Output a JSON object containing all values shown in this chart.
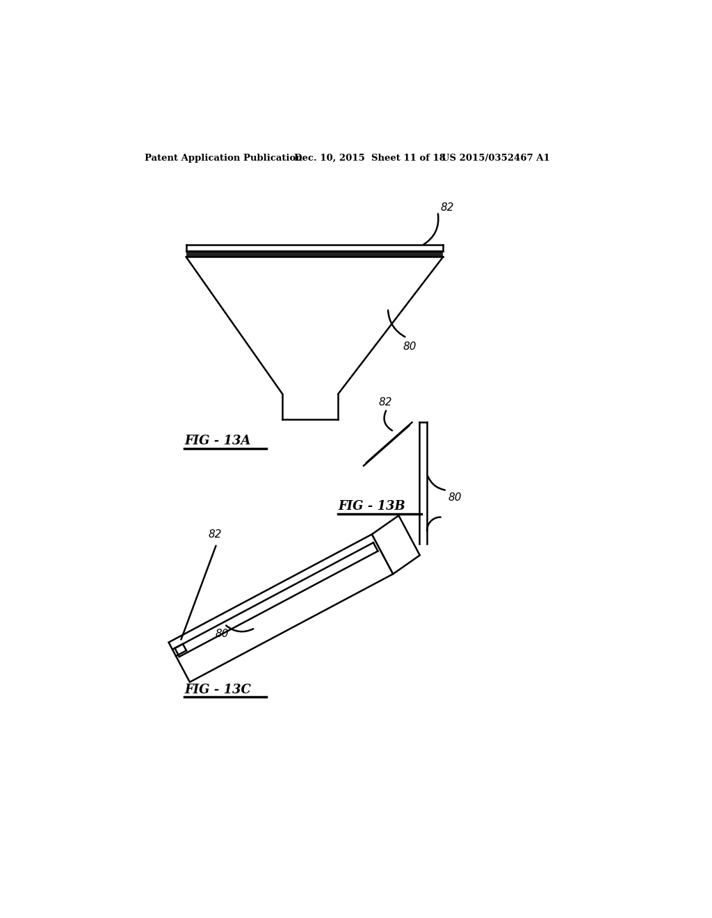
{
  "header_left": "Patent Application Publication",
  "header_mid": "Dec. 10, 2015  Sheet 11 of 18",
  "header_right": "US 2015/0352467 A1",
  "fig13a_label": "FIG - 13A",
  "fig13b_label": "FIG - 13B",
  "fig13c_label": "FIG - 13C",
  "label_80": "80",
  "label_82": "82",
  "bg_color": "#ffffff",
  "line_color": "#000000",
  "lw": 1.8
}
